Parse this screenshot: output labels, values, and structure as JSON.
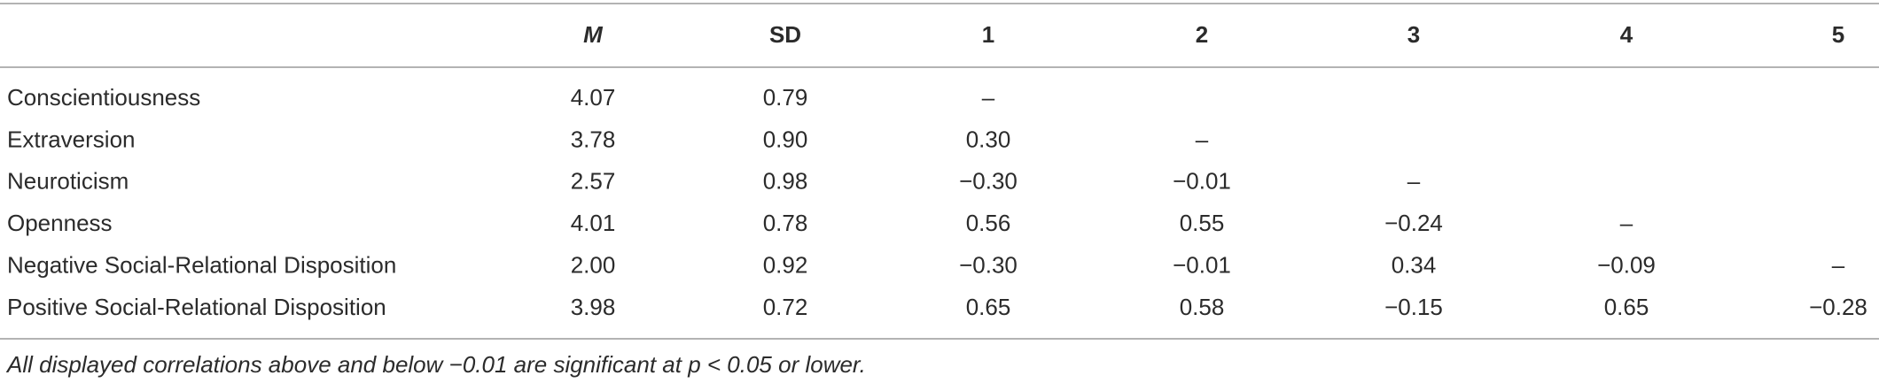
{
  "table": {
    "header": [
      "M",
      "SD",
      "1",
      "2",
      "3",
      "4",
      "5"
    ],
    "rows": [
      {
        "label": "Conscientiousness",
        "cells": [
          "4.07",
          "0.79",
          "–",
          null,
          null,
          null,
          null
        ]
      },
      {
        "label": "Extraversion",
        "cells": [
          "3.78",
          "0.90",
          "0.30",
          "–",
          null,
          null,
          null
        ]
      },
      {
        "label": "Neuroticism",
        "cells": [
          "2.57",
          "0.98",
          "−0.30",
          "−0.01",
          "–",
          null,
          null
        ]
      },
      {
        "label": "Openness",
        "cells": [
          "4.01",
          "0.78",
          "0.56",
          "0.55",
          "−0.24",
          "–",
          null
        ]
      },
      {
        "label": "Negative Social-Relational Disposition",
        "cells": [
          "2.00",
          "0.92",
          "−0.30",
          "−0.01",
          "0.34",
          "−0.09",
          "–"
        ]
      },
      {
        "label": "Positive Social-Relational Disposition",
        "cells": [
          "3.98",
          "0.72",
          "0.65",
          "0.58",
          "−0.15",
          "0.65",
          "−0.28"
        ]
      }
    ],
    "footnote": "All displayed correlations above and below −0.01 are significant at p < 0.05 or lower."
  }
}
